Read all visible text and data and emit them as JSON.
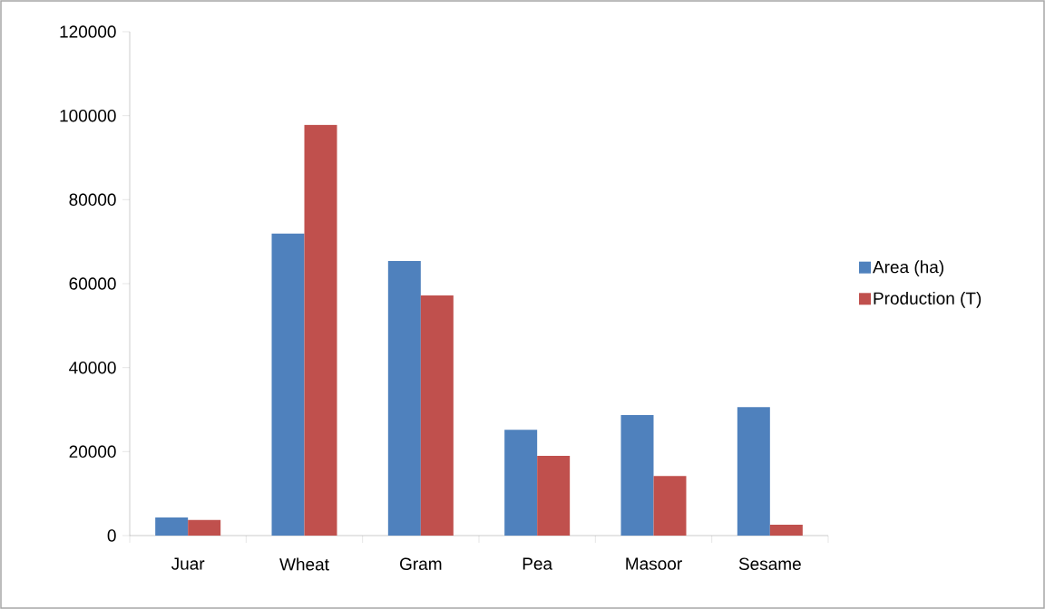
{
  "chart_data": {
    "type": "bar",
    "categories": [
      "Juar",
      "Wheat",
      "Gram",
      "Pea",
      "Masoor",
      "Sesame"
    ],
    "series": [
      {
        "name": "Area (ha)",
        "color": "#4f81bd",
        "values": [
          4300,
          71900,
          65400,
          25200,
          28700,
          30600
        ]
      },
      {
        "name": "Production (T)",
        "color": "#c0504d",
        "values": [
          3700,
          97800,
          57200,
          19000,
          14200,
          2600
        ]
      }
    ],
    "ylim": [
      0,
      120000
    ],
    "yticks": [
      0,
      20000,
      40000,
      60000,
      80000,
      100000,
      120000
    ],
    "grid": false,
    "legend": "right"
  }
}
